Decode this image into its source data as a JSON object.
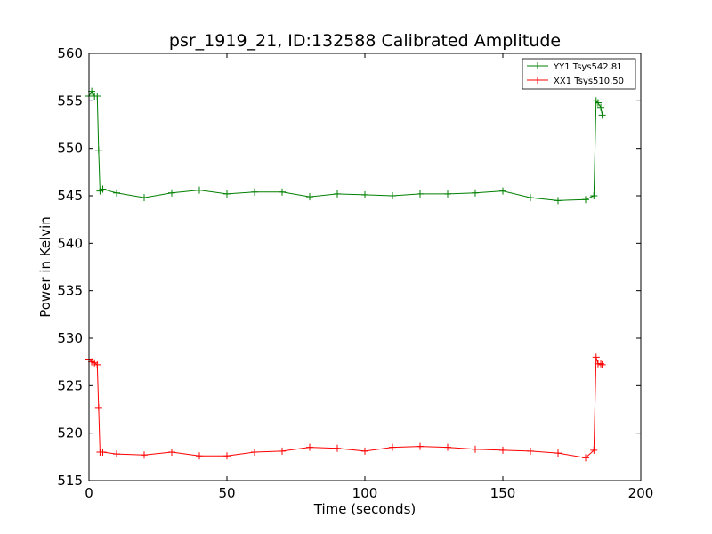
{
  "chart_data": {
    "type": "line",
    "title": "psr_1919_21, ID:132588 Calibrated Amplitude",
    "xlabel": "Time (seconds)",
    "ylabel": "Power in Kelvin",
    "xlim": [
      0,
      200
    ],
    "ylim": [
      515,
      560
    ],
    "xticks": [
      0,
      50,
      100,
      150,
      200
    ],
    "yticks": [
      515,
      520,
      525,
      530,
      535,
      540,
      545,
      550,
      555,
      560
    ],
    "grid": false,
    "legend_position": "top-right",
    "marker": "plus",
    "series": [
      {
        "name": "YY1 Tsys542.81",
        "color": "#008000",
        "x": [
          0,
          1,
          2,
          3,
          3.5,
          4,
          5,
          10,
          20,
          30,
          40,
          50,
          60,
          70,
          80,
          90,
          100,
          110,
          120,
          130,
          140,
          150,
          160,
          170,
          180,
          183,
          183.8,
          184.5,
          185.5,
          186
        ],
        "y": [
          555.5,
          556,
          555.5,
          555.5,
          549.8,
          545.5,
          545.7,
          545.3,
          544.8,
          545.3,
          545.6,
          545.2,
          545.4,
          545.4,
          544.9,
          545.2,
          545.1,
          545,
          545.2,
          545.2,
          545.3,
          545.5,
          544.8,
          544.5,
          544.6,
          545,
          555,
          554.8,
          554.3,
          553.5
        ]
      },
      {
        "name": "XX1 Tsys510.50",
        "color": "#ff0000",
        "x": [
          0,
          1,
          2,
          3,
          3.5,
          4,
          5,
          10,
          20,
          30,
          40,
          50,
          60,
          70,
          80,
          90,
          100,
          110,
          120,
          130,
          140,
          150,
          160,
          170,
          180,
          183,
          183.8,
          184.5,
          185.5,
          186
        ],
        "y": [
          527.8,
          527.5,
          527.4,
          527.2,
          522.7,
          518,
          518,
          517.8,
          517.7,
          518,
          517.6,
          517.6,
          518,
          518.1,
          518.5,
          518.4,
          518.1,
          518.5,
          518.6,
          518.5,
          518.3,
          518.2,
          518.1,
          517.9,
          517.4,
          518.2,
          528,
          527.3,
          527.3,
          527.2
        ]
      }
    ]
  }
}
